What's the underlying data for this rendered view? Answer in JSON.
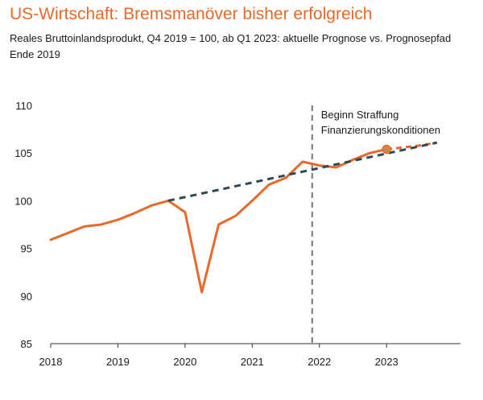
{
  "title": "US-Wirtschaft: Bremsmanöver bisher erfolgreich",
  "subtitle": "Reales Bruttoinlandsprodukt, Q4 2019 = 100, ab Q1 2023: aktuelle Prognose vs. Prognosepfad Ende 2019",
  "colors": {
    "actual": "#e8692a",
    "path": "#2f4a52",
    "vline": "#777777",
    "axis": "#333333",
    "marker": "#c98a4a"
  },
  "chart_data": {
    "type": "line",
    "title": "US-Wirtschaft: Bremsmanöver bisher erfolgreich",
    "subtitle": "Reales Bruttoinlandsprodukt, Q4 2019 = 100, ab Q1 2023: aktuelle Prognose vs. Prognosepfad Ende 2019",
    "xlim": [
      2018.0,
      2024.1
    ],
    "ylim": [
      85,
      110
    ],
    "yticks": [
      85,
      90,
      95,
      100,
      105,
      110
    ],
    "xtick_labels": [
      "2018",
      "2019",
      "2020",
      "2021",
      "2022",
      "2023"
    ],
    "xticks": [
      2018,
      2019,
      2020,
      2021,
      2022,
      2023
    ],
    "grid": false,
    "annotation": {
      "label_lines": [
        "Beginn Straffung",
        "Finanzierungskonditionen"
      ],
      "x": 2022.0
    },
    "series": [
      {
        "style": "solid",
        "x": [
          2018.0,
          2018.25,
          2018.5,
          2018.75,
          2019.0,
          2019.25,
          2019.5,
          2019.75,
          2020.0,
          2020.25,
          2020.5,
          2020.75,
          2021.0,
          2021.25,
          2021.5,
          2021.75,
          2022.0,
          2022.25,
          2022.5,
          2022.75,
          2023.0
        ],
        "y": [
          95.9,
          96.6,
          97.3,
          97.5,
          98.0,
          98.7,
          99.5,
          100.0,
          98.8,
          90.4,
          97.5,
          98.4,
          100.0,
          101.7,
          102.4,
          104.1,
          103.7,
          103.5,
          104.3,
          105.0,
          105.4
        ]
      },
      {
        "style": "dashed",
        "x": [
          2023.0,
          2023.25,
          2023.5,
          2023.75
        ],
        "y": [
          105.4,
          105.6,
          105.8,
          106.1
        ]
      },
      {
        "style": "dashed",
        "x": [
          2019.75,
          2023.75
        ],
        "y": [
          100.0,
          106.1
        ]
      }
    ],
    "marker": {
      "x": 2023.0,
      "y": 105.4
    }
  }
}
